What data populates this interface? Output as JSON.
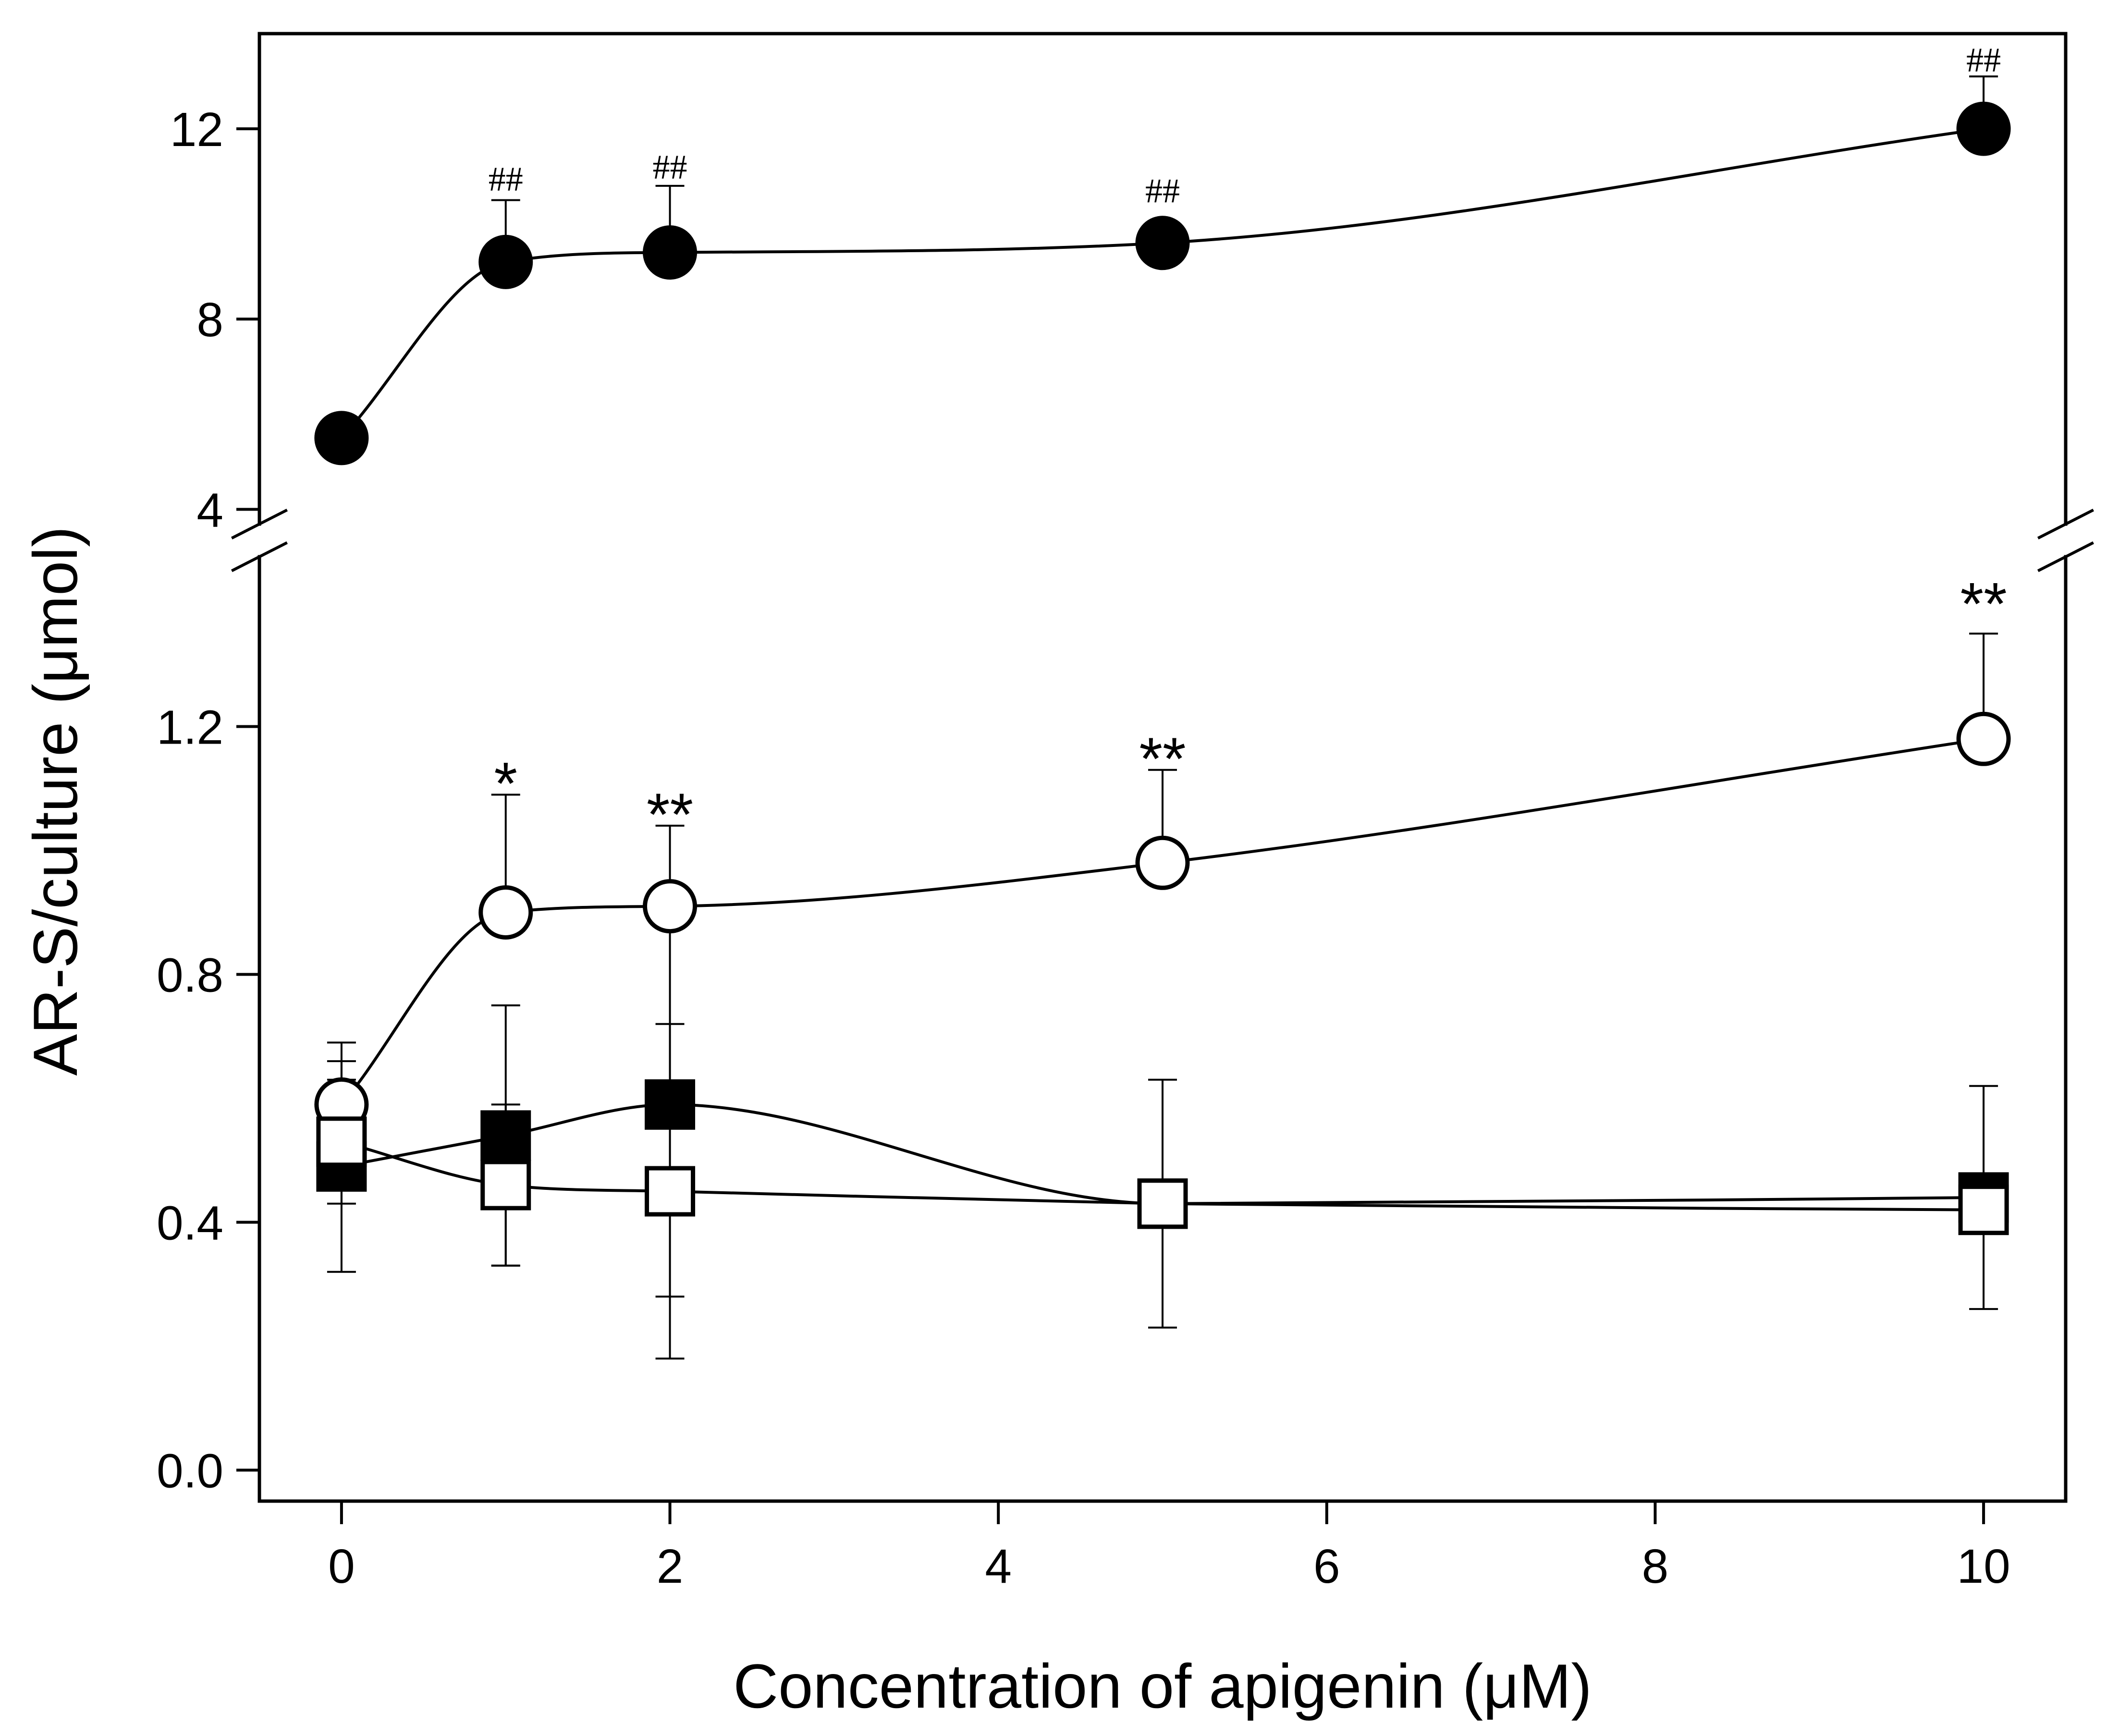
{
  "chart_data": {
    "type": "line",
    "title": "",
    "xlabel": "Concentration of apigenin (μM)",
    "ylabel": "AR-S/culture (μmol)",
    "x_ticks": [
      0,
      2,
      4,
      6,
      8,
      10
    ],
    "x_tick_labels": [
      "0",
      "2",
      "4",
      "6",
      "8",
      "10"
    ],
    "xlim": [
      -0.5,
      10.5
    ],
    "y_axis_broken": true,
    "y_lower": {
      "ylim": [
        -0.05,
        1.45
      ],
      "ticks": [
        0.0,
        0.4,
        0.8,
        1.2
      ],
      "tick_labels": [
        "0.0",
        "0.4",
        "0.8",
        "1.2"
      ]
    },
    "y_upper": {
      "ylim": [
        3.6,
        14.0
      ],
      "ticks": [
        4,
        8,
        12
      ],
      "tick_labels": [
        "4",
        "8",
        "12"
      ]
    },
    "series": [
      {
        "name": "filled circles",
        "marker": "circle",
        "fill": "#000000",
        "segment": "upper",
        "x": [
          0,
          1,
          2,
          5,
          10
        ],
        "y": [
          5.5,
          9.2,
          9.4,
          9.6,
          12.0
        ],
        "error": [
          0,
          1.3,
          1.4,
          0.4,
          1.1
        ]
      },
      {
        "name": "open circles",
        "marker": "circle",
        "fill": "#ffffff",
        "segment": "lower",
        "x": [
          0,
          1,
          2,
          5,
          10
        ],
        "y": [
          0.59,
          0.9,
          0.91,
          0.98,
          1.18
        ],
        "error": [
          0.1,
          0.19,
          0.13,
          0.15,
          0.17
        ]
      },
      {
        "name": "filled squares",
        "marker": "square",
        "fill": "#000000",
        "segment": "lower",
        "x": [
          0,
          1,
          2,
          5,
          10
        ],
        "y": [
          0.49,
          0.54,
          0.59,
          0.43,
          0.44
        ],
        "error": [
          0.17,
          0.21,
          0.31,
          0.2,
          0.18
        ]
      },
      {
        "name": "open squares",
        "marker": "square",
        "fill": "#ffffff",
        "segment": "lower",
        "x": [
          0,
          1,
          2,
          5,
          10
        ],
        "y": [
          0.53,
          0.46,
          0.45,
          0.43,
          0.42
        ],
        "error": [
          0.1,
          0.13,
          0.27,
          0.0,
          0.0
        ]
      }
    ],
    "annotations": [
      {
        "text": "##",
        "x": 1,
        "y": 10.7,
        "segment": "upper",
        "kind": "hash"
      },
      {
        "text": "##",
        "x": 2,
        "y": 10.95,
        "segment": "upper",
        "kind": "hash"
      },
      {
        "text": "##",
        "x": 5,
        "y": 10.45,
        "segment": "upper",
        "kind": "hash"
      },
      {
        "text": "##",
        "x": 10,
        "y": 13.2,
        "segment": "upper",
        "kind": "hash"
      },
      {
        "text": "*",
        "x": 1,
        "y": 1.09,
        "segment": "lower",
        "kind": "star"
      },
      {
        "text": "**",
        "x": 2,
        "y": 1.04,
        "segment": "lower",
        "kind": "star"
      },
      {
        "text": "**",
        "x": 5,
        "y": 1.13,
        "segment": "lower",
        "kind": "star"
      },
      {
        "text": "**",
        "x": 10,
        "y": 1.38,
        "segment": "lower",
        "kind": "star"
      }
    ]
  }
}
